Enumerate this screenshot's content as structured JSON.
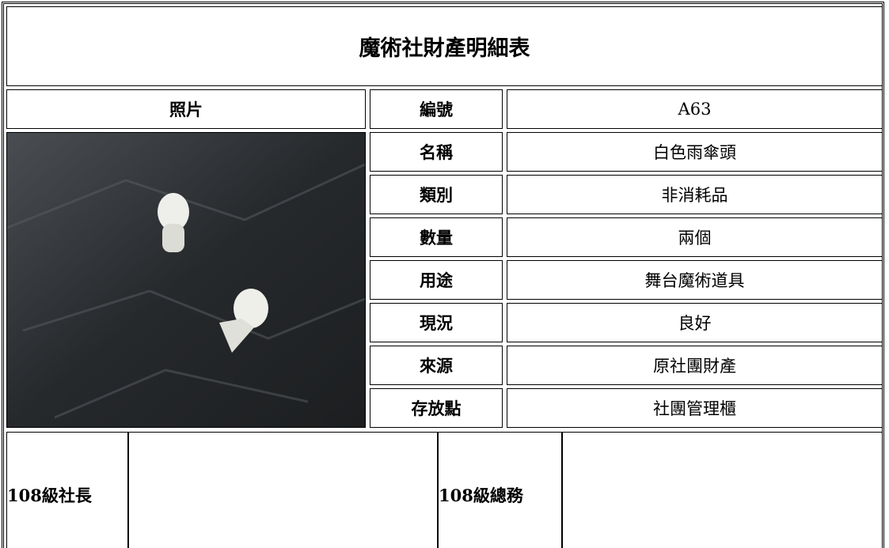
{
  "title": "魔術社財產明細表",
  "photo_header": "照片",
  "fields": [
    {
      "label": "編號",
      "value": "A63"
    },
    {
      "label": "名稱",
      "value": "白色雨傘頭"
    },
    {
      "label": "類別",
      "value": "非消耗品"
    },
    {
      "label": "數量",
      "value": "兩個"
    },
    {
      "label": "用途",
      "value": "舞台魔術道具"
    },
    {
      "label": "現況",
      "value": "良好"
    },
    {
      "label": "來源",
      "value": "原社團財產"
    },
    {
      "label": "存放點",
      "value": "社團管理櫃"
    }
  ],
  "signatures": [
    "108級社長",
    "108級總務"
  ]
}
